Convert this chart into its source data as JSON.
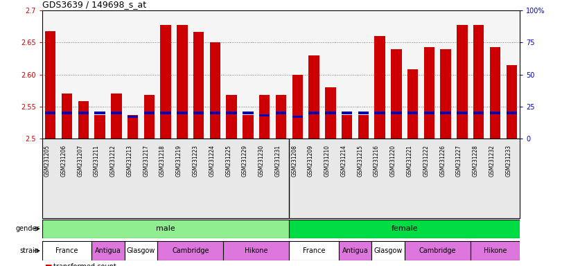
{
  "title": "GDS3639 / 149698_s_at",
  "samples": [
    "GSM231205",
    "GSM231206",
    "GSM231207",
    "GSM231211",
    "GSM231212",
    "GSM231213",
    "GSM231217",
    "GSM231218",
    "GSM231219",
    "GSM231223",
    "GSM231224",
    "GSM231225",
    "GSM231229",
    "GSM231230",
    "GSM231231",
    "GSM231208",
    "GSM231209",
    "GSM231210",
    "GSM231214",
    "GSM231215",
    "GSM231216",
    "GSM231220",
    "GSM231221",
    "GSM231222",
    "GSM231226",
    "GSM231227",
    "GSM231228",
    "GSM231232",
    "GSM231233"
  ],
  "red_values": [
    2.668,
    2.57,
    2.558,
    2.537,
    2.57,
    2.537,
    2.568,
    2.678,
    2.678,
    2.667,
    2.65,
    2.568,
    2.537,
    2.568,
    2.568,
    2.6,
    2.63,
    2.58,
    2.537,
    2.537,
    2.66,
    2.64,
    2.608,
    2.643,
    2.64,
    2.678,
    2.678,
    2.643,
    2.615
  ],
  "blue_percentiles": [
    20,
    20,
    20,
    20,
    20,
    17,
    20,
    20,
    20,
    20,
    20,
    20,
    20,
    18,
    20,
    17,
    20,
    20,
    20,
    20,
    20,
    20,
    20,
    20,
    20,
    20,
    20,
    20,
    20
  ],
  "ylim_left": [
    2.5,
    2.7
  ],
  "ylim_right": [
    0,
    100
  ],
  "yticks_left": [
    2.5,
    2.55,
    2.6,
    2.65,
    2.7
  ],
  "yticks_right": [
    0,
    25,
    50,
    75,
    100
  ],
  "ytick_labels_right": [
    "0",
    "25",
    "50",
    "75",
    "100%"
  ],
  "bar_color": "#cc0000",
  "blue_color": "#0000bb",
  "bar_bottom": 2.5,
  "gender_male_count": 15,
  "gender_female_count": 14,
  "gender_male_color": "#90ee90",
  "gender_female_color": "#00dd44",
  "strain_male": [
    {
      "label": "France",
      "count": 3,
      "color": "#ffffff"
    },
    {
      "label": "Antigua",
      "count": 2,
      "color": "#dd77dd"
    },
    {
      "label": "Glasgow",
      "count": 2,
      "color": "#ffffff"
    },
    {
      "label": "Cambridge",
      "count": 4,
      "color": "#dd77dd"
    },
    {
      "label": "Hikone",
      "count": 4,
      "color": "#dd77dd"
    }
  ],
  "strain_female": [
    {
      "label": "France",
      "count": 3,
      "color": "#ffffff"
    },
    {
      "label": "Antigua",
      "count": 2,
      "color": "#dd77dd"
    },
    {
      "label": "Glasgow",
      "count": 2,
      "color": "#ffffff"
    },
    {
      "label": "Cambridge",
      "count": 4,
      "color": "#dd77dd"
    },
    {
      "label": "Hikone",
      "count": 3,
      "color": "#dd77dd"
    }
  ],
  "left_axis_color": "#cc0000",
  "right_axis_color": "#0000bb",
  "tick_area_color": "#e8e8e8"
}
